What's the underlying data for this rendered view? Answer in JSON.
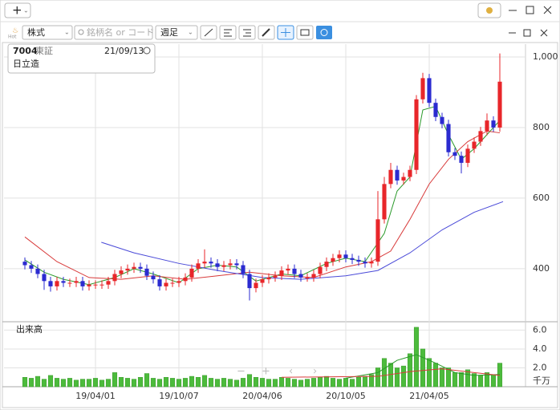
{
  "toolbar": {
    "hot": "Hot",
    "market": "株式",
    "search_placeholder": "銘柄名 or コード",
    "period": "週足"
  },
  "info": {
    "code": "7004",
    "exchange": "東証",
    "date": "21/09/13",
    "name": "日立造"
  },
  "chart_data": {
    "type": "candlestick",
    "xlim": [
      -3.25,
      78
    ],
    "xticks": [
      {
        "value": 11,
        "label": "19/04/01"
      },
      {
        "value": 24,
        "label": "19/10/07"
      },
      {
        "value": 37,
        "label": "20/04/06"
      },
      {
        "value": 50,
        "label": "20/10/05"
      },
      {
        "value": 63,
        "label": "21/04/05"
      }
    ],
    "ylim": [
      252,
      1025
    ],
    "yticks": [
      400,
      600,
      800,
      {
        "value": 1000,
        "label": "1,000"
      }
    ],
    "grid": true,
    "up_color": "#e8262a",
    "down_color": "#2b2bd0",
    "open": [
      420,
      410,
      400,
      385,
      365,
      350,
      365,
      360,
      360,
      365,
      350,
      355,
      355,
      355,
      365,
      385,
      395,
      400,
      405,
      400,
      380,
      370,
      350,
      360,
      360,
      365,
      375,
      400,
      415,
      420,
      415,
      405,
      410,
      415,
      410,
      385,
      345,
      360,
      370,
      375,
      380,
      395,
      400,
      385,
      375,
      375,
      385,
      405,
      420,
      430,
      440,
      430,
      425,
      420,
      415,
      420,
      540,
      640,
      680,
      650,
      660,
      680,
      880,
      940,
      870,
      830,
      810,
      730,
      720,
      700,
      740,
      760,
      790,
      820,
      800
    ],
    "high": [
      432,
      422,
      412,
      397,
      377,
      377,
      377,
      372,
      377,
      377,
      367,
      367,
      367,
      377,
      397,
      407,
      412,
      417,
      417,
      412,
      392,
      382,
      372,
      372,
      377,
      387,
      412,
      427,
      455,
      432,
      427,
      422,
      427,
      427,
      422,
      397,
      372,
      382,
      387,
      392,
      407,
      412,
      412,
      397,
      387,
      397,
      417,
      432,
      442,
      452,
      452,
      442,
      437,
      432,
      432,
      620,
      660,
      700,
      692,
      672,
      692,
      892,
      955,
      952,
      882,
      842,
      822,
      742,
      732,
      752,
      772,
      802,
      840,
      832,
      1010
    ],
    "low": [
      398,
      388,
      373,
      340,
      335,
      338,
      348,
      348,
      348,
      338,
      338,
      343,
      343,
      343,
      353,
      373,
      383,
      388,
      388,
      368,
      358,
      338,
      338,
      348,
      348,
      353,
      363,
      388,
      403,
      403,
      393,
      393,
      398,
      398,
      373,
      310,
      333,
      348,
      358,
      363,
      368,
      383,
      373,
      363,
      363,
      363,
      373,
      393,
      408,
      418,
      418,
      413,
      408,
      403,
      403,
      408,
      528,
      628,
      638,
      638,
      648,
      668,
      868,
      858,
      818,
      798,
      718,
      708,
      670,
      688,
      728,
      748,
      778,
      788,
      788
    ],
    "close": [
      410,
      400,
      385,
      365,
      350,
      365,
      360,
      360,
      365,
      350,
      355,
      355,
      355,
      365,
      385,
      395,
      400,
      405,
      400,
      380,
      370,
      350,
      360,
      360,
      365,
      375,
      400,
      415,
      420,
      415,
      405,
      410,
      415,
      410,
      385,
      345,
      360,
      370,
      375,
      380,
      395,
      400,
      385,
      375,
      375,
      385,
      405,
      420,
      430,
      440,
      430,
      425,
      420,
      415,
      420,
      540,
      640,
      680,
      650,
      660,
      680,
      880,
      940,
      870,
      830,
      810,
      730,
      720,
      700,
      740,
      760,
      790,
      820,
      800,
      930
    ],
    "ma": [
      {
        "color": "#2a9a2a",
        "x": [
          0,
          3,
          6,
          10,
          14,
          17,
          20,
          24,
          27,
          30,
          33,
          36,
          40,
          43,
          47,
          50,
          53,
          56,
          58,
          60,
          62,
          64,
          66,
          68,
          70,
          72,
          74
        ],
        "values": [
          425,
          390,
          370,
          355,
          375,
          400,
          385,
          360,
          400,
          410,
          405,
          365,
          385,
          380,
          415,
          430,
          420,
          500,
          620,
          660,
          850,
          860,
          780,
          710,
          740,
          780,
          820
        ]
      },
      {
        "color": "#d83a3a",
        "x": [
          0,
          5,
          10,
          15,
          20,
          25,
          30,
          35,
          40,
          45,
          50,
          54,
          57,
          60,
          63,
          66,
          69,
          72,
          74
        ],
        "values": [
          490,
          420,
          375,
          370,
          380,
          370,
          380,
          390,
          380,
          375,
          405,
          420,
          450,
          540,
          640,
          710,
          760,
          790,
          785
        ]
      },
      {
        "color": "#4a4ad8",
        "x": [
          11.9,
          17,
          24,
          30,
          37,
          43,
          50,
          55,
          60,
          65,
          70,
          74.5
        ],
        "values": [
          475,
          445,
          415,
          395,
          375,
          370,
          380,
          395,
          445,
          510,
          560,
          590
        ]
      }
    ],
    "volume": {
      "label": "出来高",
      "unit": "千万",
      "color": "#4cbb3c",
      "ylim": [
        0,
        6.8
      ],
      "yticks": [
        {
          "value": 2,
          "label": "2.0"
        },
        {
          "value": 4,
          "label": "4.0"
        },
        {
          "value": 6,
          "label": "6.0"
        }
      ],
      "values": [
        1.0,
        0.9,
        1.1,
        0.8,
        1.2,
        0.9,
        0.8,
        0.9,
        0.7,
        0.8,
        0.8,
        0.9,
        0.7,
        0.8,
        1.5,
        1.0,
        0.9,
        0.8,
        1.0,
        1.4,
        0.9,
        0.8,
        1.0,
        0.9,
        0.8,
        0.9,
        1.1,
        1.0,
        1.2,
        0.9,
        0.8,
        0.9,
        0.8,
        0.7,
        0.9,
        1.3,
        1.0,
        0.9,
        0.8,
        0.8,
        1.0,
        0.9,
        0.8,
        0.7,
        0.8,
        0.9,
        1.0,
        1.1,
        0.9,
        0.8,
        0.9,
        0.8,
        1.0,
        1.1,
        1.3,
        2.0,
        3.0,
        2.5,
        2.0,
        2.2,
        3.5,
        6.3,
        4.0,
        3.0,
        2.5,
        2.0,
        2.0,
        1.5,
        1.5,
        1.8,
        1.4,
        1.2,
        1.5,
        1.3,
        2.5
      ],
      "ma": [
        {
          "color": "#2a9a2a",
          "x": [
            50,
            55,
            58,
            61,
            64,
            67,
            70,
            74
          ],
          "values": [
            0.9,
            1.5,
            2.8,
            3.4,
            2.5,
            1.5,
            1.2,
            1.3
          ]
        },
        {
          "color": "#d83a3a",
          "x": [
            40,
            55,
            60,
            65,
            70,
            74
          ],
          "values": [
            1.0,
            1.1,
            1.6,
            1.9,
            1.5,
            1.2
          ]
        }
      ]
    }
  }
}
